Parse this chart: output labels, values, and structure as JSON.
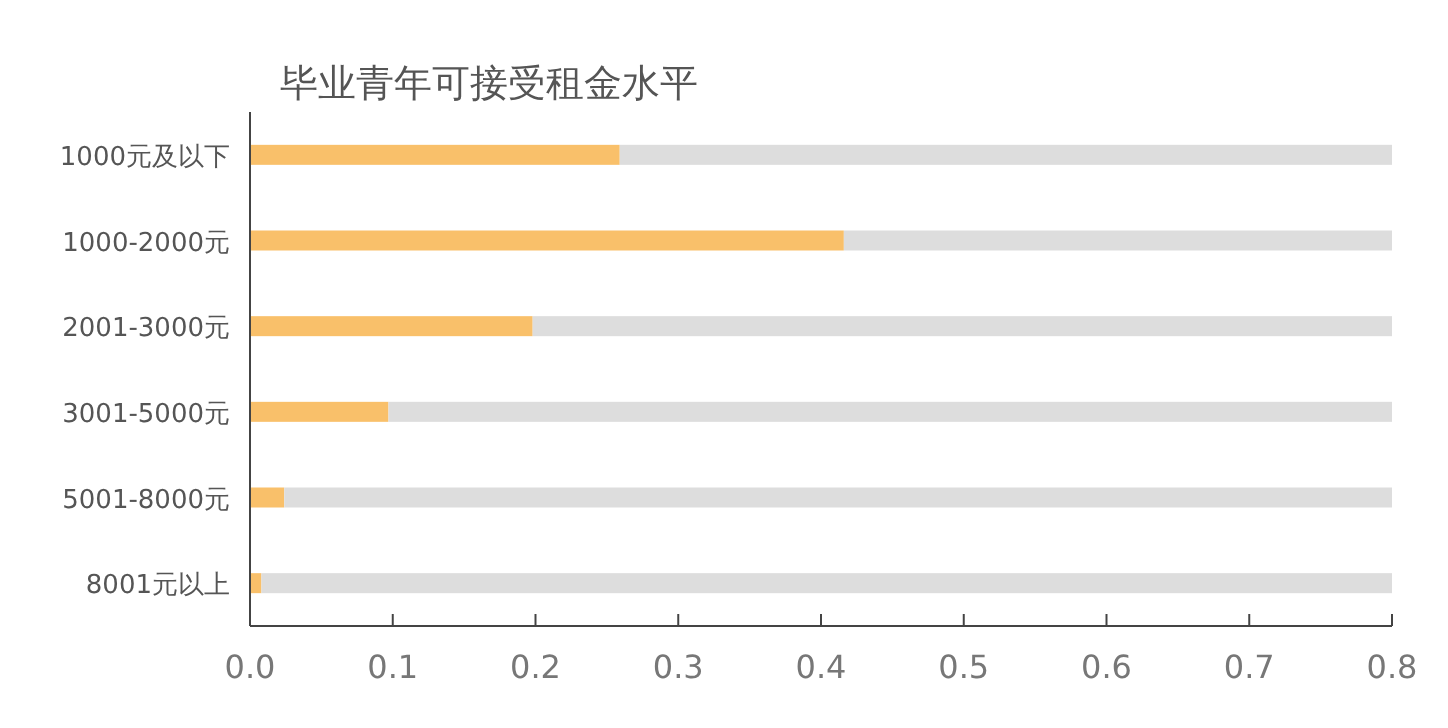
{
  "chart_data": {
    "type": "bar",
    "orientation": "horizontal",
    "title": "毕业青年可接受租金水平",
    "categories": [
      "1000元及以下",
      "1000-2000元",
      "2001-3000元",
      "3001-5000元",
      "5001-8000元",
      "8001元以上"
    ],
    "stacked": true,
    "series": [
      {
        "color": "#f9c06a",
        "values": [
          0.259,
          0.416,
          0.198,
          0.097,
          0.024,
          0.008
        ]
      },
      {
        "color": "#dddddd",
        "values": [
          0.541,
          0.384,
          0.602,
          0.703,
          0.776,
          0.792
        ]
      }
    ],
    "xlim": [
      0,
      0.8
    ],
    "xticks": [
      {
        "value": 0,
        "label": "0.0"
      },
      0.1,
      0.2,
      0.3,
      0.4,
      0.5,
      0.6,
      0.7,
      0.8
    ],
    "grid": false
  }
}
